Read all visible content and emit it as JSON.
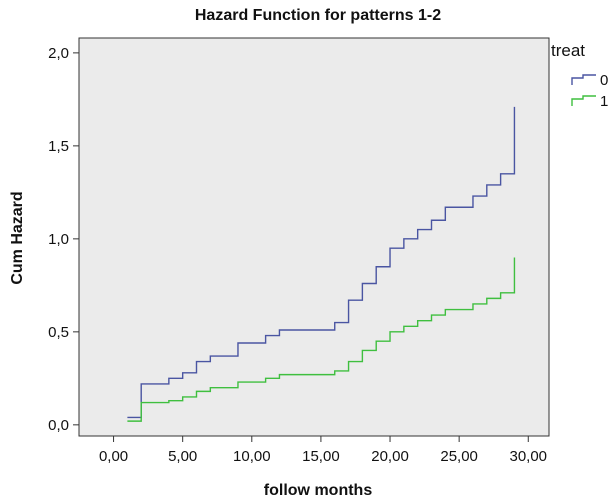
{
  "chart_data": {
    "type": "line",
    "step": true,
    "title": "Hazard Function for patterns 1-2",
    "xlabel": "follow months",
    "ylabel": "Cum Hazard",
    "xlim": [
      -2.5,
      31.5
    ],
    "ylim": [
      -0.06,
      2.08
    ],
    "x_ticks": [
      0,
      5,
      10,
      15,
      20,
      25,
      30
    ],
    "x_tick_labels": [
      "0,00",
      "5,00",
      "10,00",
      "15,00",
      "20,00",
      "25,00",
      "30,00"
    ],
    "y_ticks": [
      0,
      0.5,
      1.0,
      1.5,
      2.0
    ],
    "y_tick_labels": [
      "0,0",
      "0,5",
      "1,0",
      "1,5",
      "2,0"
    ],
    "grid": false,
    "plot_background": "#ebebeb",
    "legend": {
      "title": "treat",
      "placement": "top-right"
    },
    "series": [
      {
        "name": "0",
        "color": "#4a55a2",
        "x": [
          1,
          2,
          4,
          5,
          6,
          7,
          9,
          11,
          12,
          16,
          17,
          18,
          19,
          20,
          21,
          22,
          23,
          24,
          26,
          27,
          28,
          29
        ],
        "y": [
          0.04,
          0.22,
          0.25,
          0.28,
          0.34,
          0.37,
          0.44,
          0.48,
          0.51,
          0.55,
          0.67,
          0.76,
          0.85,
          0.95,
          1.0,
          1.05,
          1.1,
          1.17,
          1.23,
          1.29,
          1.35,
          1.48
        ],
        "end": [
          29,
          1.71
        ]
      },
      {
        "name": "1",
        "color": "#3fbf3f",
        "x": [
          1,
          2,
          4,
          5,
          6,
          7,
          9,
          11,
          12,
          16,
          17,
          18,
          19,
          20,
          21,
          22,
          23,
          24,
          26,
          27,
          28,
          29
        ],
        "y": [
          0.02,
          0.12,
          0.13,
          0.15,
          0.18,
          0.2,
          0.23,
          0.25,
          0.27,
          0.29,
          0.34,
          0.4,
          0.45,
          0.5,
          0.53,
          0.56,
          0.59,
          0.62,
          0.65,
          0.68,
          0.71,
          0.78
        ],
        "end": [
          29,
          0.9
        ]
      }
    ]
  }
}
